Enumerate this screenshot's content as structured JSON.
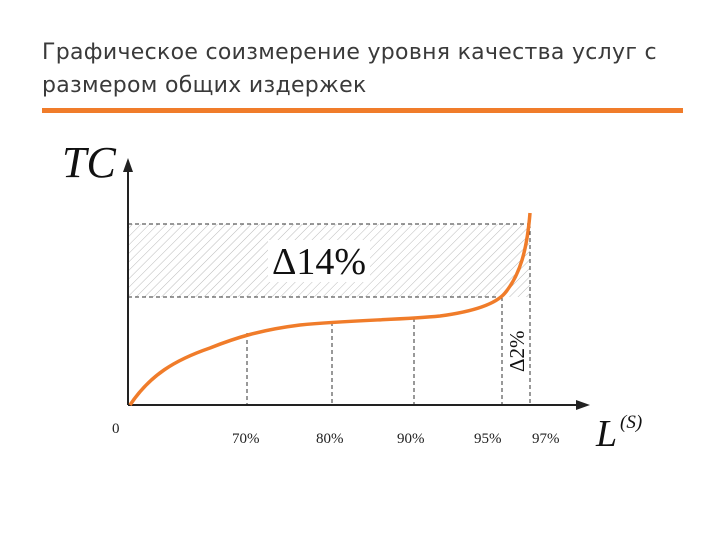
{
  "header": {
    "title": "Графическое соизмерение уровня качества услуг с размером общих издержек"
  },
  "diagram": {
    "y_axis_label": "TC",
    "x_axis_label": "L",
    "x_axis_superscript": "(S)",
    "origin_label": "0",
    "x_tick_labels": [
      "70%",
      "80%",
      "90%",
      "95%",
      "97%"
    ],
    "annotations": [
      "Δ14%",
      "Δ2%"
    ]
  }
}
